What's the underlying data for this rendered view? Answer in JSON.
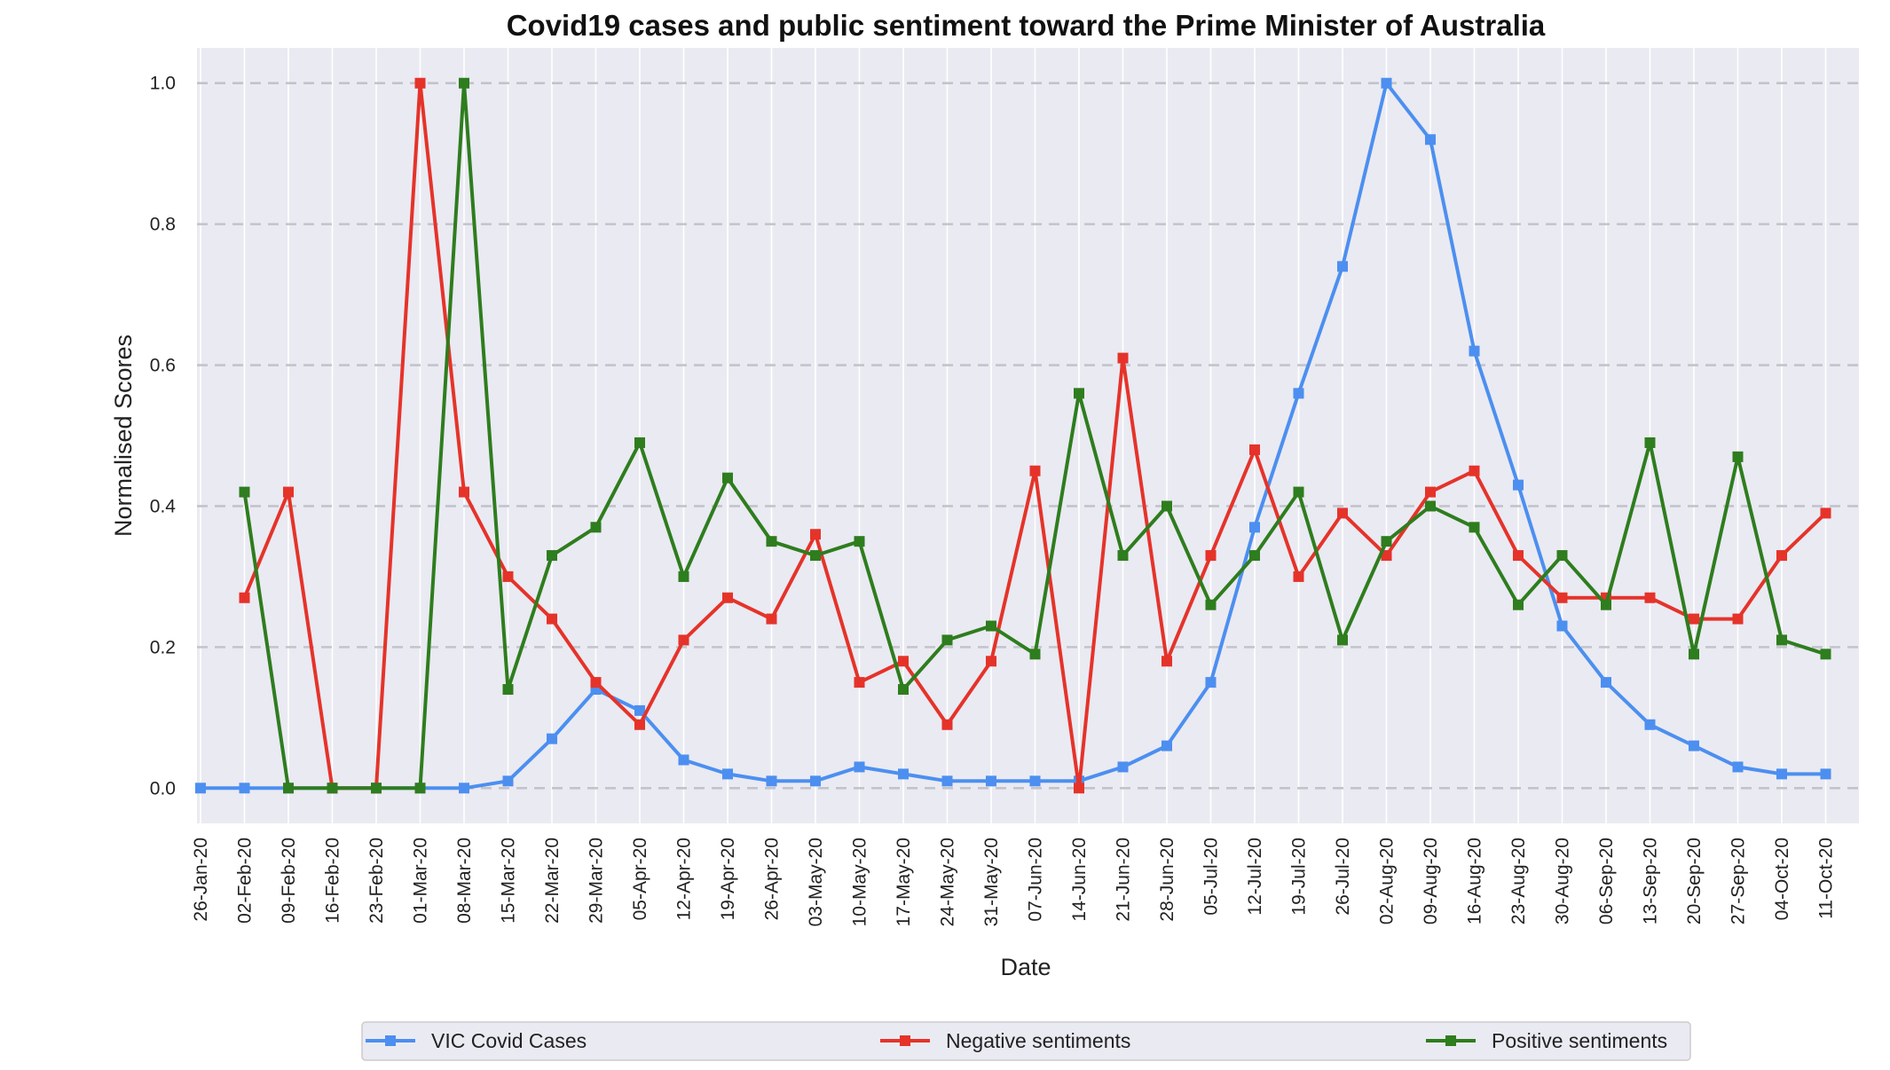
{
  "chart_data": {
    "type": "line",
    "title": "Covid19 cases and public sentiment toward the Prime Minister of Australia",
    "xlabel": "Date",
    "ylabel": "Normalised Scores",
    "ylim": [
      -0.05,
      1.05
    ],
    "yticks": [
      "0.0",
      "0.2",
      "0.4",
      "0.6",
      "0.8",
      "1.0"
    ],
    "grid": "horizontal dashed",
    "legend_position": "bottom",
    "x": [
      "26-Jan-20",
      "02-Feb-20",
      "09-Feb-20",
      "16-Feb-20",
      "23-Feb-20",
      "01-Mar-20",
      "08-Mar-20",
      "15-Mar-20",
      "22-Mar-20",
      "29-Mar-20",
      "05-Apr-20",
      "12-Apr-20",
      "19-Apr-20",
      "26-Apr-20",
      "03-May-20",
      "10-May-20",
      "17-May-20",
      "24-May-20",
      "31-May-20",
      "07-Jun-20",
      "14-Jun-20",
      "21-Jun-20",
      "28-Jun-20",
      "05-Jul-20",
      "12-Jul-20",
      "19-Jul-20",
      "26-Jul-20",
      "02-Aug-20",
      "09-Aug-20",
      "16-Aug-20",
      "23-Aug-20",
      "30-Aug-20",
      "06-Sep-20",
      "13-Sep-20",
      "20-Sep-20",
      "27-Sep-20",
      "04-Oct-20",
      "11-Oct-20"
    ],
    "series": [
      {
        "name": "VIC Covid Cases",
        "color": "#4c8ff0",
        "values": [
          0.0,
          0.0,
          0.0,
          0.0,
          0.0,
          0.0,
          0.0,
          0.01,
          0.07,
          0.14,
          0.11,
          0.04,
          0.02,
          0.01,
          0.01,
          0.03,
          0.02,
          0.01,
          0.01,
          0.01,
          0.01,
          0.03,
          0.06,
          0.15,
          0.37,
          0.56,
          0.74,
          1.0,
          0.92,
          0.62,
          0.43,
          0.23,
          0.15,
          0.09,
          0.06,
          0.03,
          0.02,
          0.02
        ]
      },
      {
        "name": "Negative sentiments",
        "color": "#e5332a",
        "values": [
          null,
          0.27,
          0.42,
          0.0,
          0.0,
          1.0,
          0.42,
          0.3,
          0.24,
          0.15,
          0.09,
          0.21,
          0.27,
          0.24,
          0.36,
          0.15,
          0.18,
          0.09,
          0.18,
          0.45,
          0.0,
          0.61,
          0.18,
          0.33,
          0.48,
          0.3,
          0.39,
          0.33,
          0.42,
          0.45,
          0.33,
          0.27,
          0.27,
          0.27,
          0.24,
          0.24,
          0.33,
          0.39
        ]
      },
      {
        "name": "Positive sentiments",
        "color": "#2e7d1e",
        "values": [
          null,
          0.42,
          0.0,
          0.0,
          0.0,
          0.0,
          1.0,
          0.14,
          0.33,
          0.37,
          0.49,
          0.3,
          0.44,
          0.35,
          0.33,
          0.35,
          0.14,
          0.21,
          0.23,
          0.19,
          0.56,
          0.33,
          0.4,
          0.26,
          0.33,
          0.42,
          0.21,
          0.35,
          0.4,
          0.37,
          0.26,
          0.33,
          0.26,
          0.49,
          0.19,
          0.47,
          0.21,
          0.19
        ]
      }
    ]
  }
}
